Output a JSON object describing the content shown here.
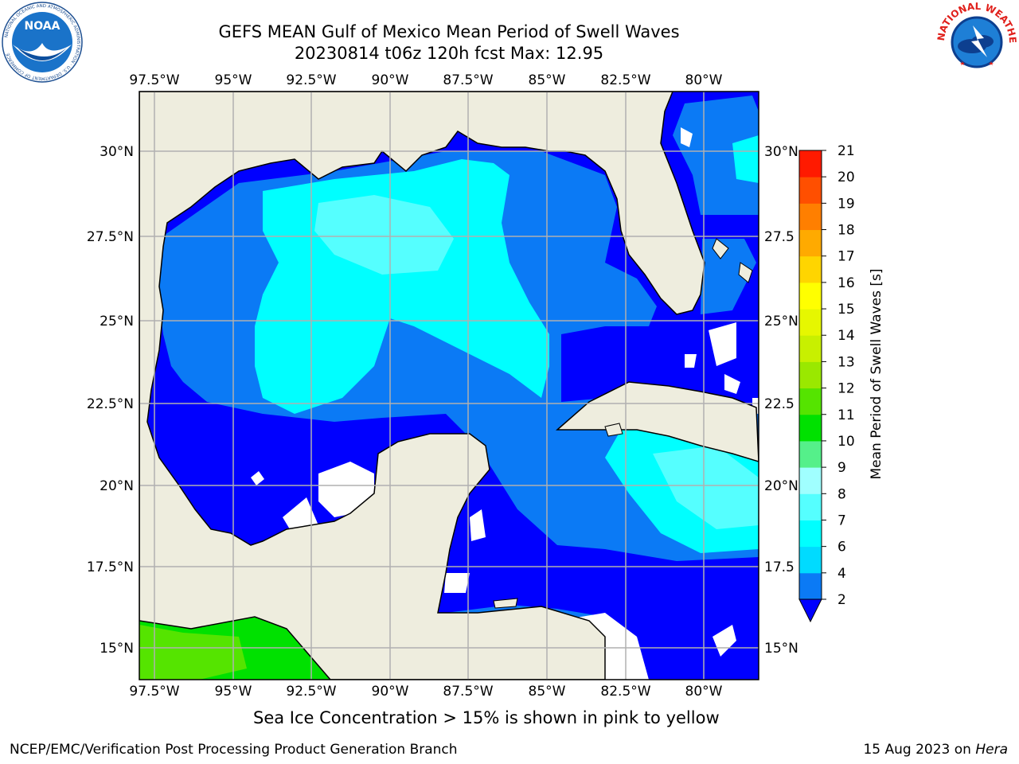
{
  "header": {
    "title_line1": "GEFS MEAN Gulf of Mexico Mean Period of Swell Waves",
    "title_line2": "20230814 t06z 120h fcst   Max: 12.95"
  },
  "logos": {
    "left": "NOAA",
    "left_ring": "NATIONAL OCEANIC AND ATMOSPHERIC ADMINISTRATION · U.S. DEPARTMENT OF COMMERCE",
    "right_ring": "NATIONAL WEATHER SERVICE"
  },
  "map": {
    "lon_ticks": [
      "97.5°W",
      "95°W",
      "92.5°W",
      "90°W",
      "87.5°W",
      "85°W",
      "82.5°W",
      "80°W"
    ],
    "lat_ticks_left": [
      "30°N",
      "27.5°N",
      "25°N",
      "22.5°N",
      "20°N",
      "17.5°N",
      "15°N"
    ],
    "lat_ticks_right": [
      "30°N",
      "27.5",
      "25°N",
      "22.5",
      "20°N",
      "17.5",
      "15°N"
    ],
    "grid": true,
    "land_color": "#eeedde",
    "no_data_color": "#ffffff"
  },
  "colorbar": {
    "label": "Mean Period of Swell Waves [s]",
    "ticks": [
      "2",
      "4",
      "6",
      "7",
      "8",
      "9",
      "10",
      "11",
      "12",
      "13",
      "14",
      "15",
      "16",
      "17",
      "18",
      "19",
      "20",
      "21"
    ],
    "colors": [
      "#0b7af5",
      "#00dbff",
      "#00ffff",
      "#55ffff",
      "#a0ffff",
      "#55f08a",
      "#00e100",
      "#55e400",
      "#9ae800",
      "#c8f000",
      "#e6f700",
      "#ffff00",
      "#ffd500",
      "#ffaa00",
      "#ff7f00",
      "#ff4f00",
      "#ff1a00"
    ],
    "under_color": "#0000ff"
  },
  "caption": "Sea Ice Concentration > 15% is shown in pink to yellow",
  "footer": {
    "left": "NCEP/EMC/Verification Post Processing Product Generation Branch",
    "right_prefix": "15 Aug 2023 on ",
    "right_italic": "Hera"
  }
}
